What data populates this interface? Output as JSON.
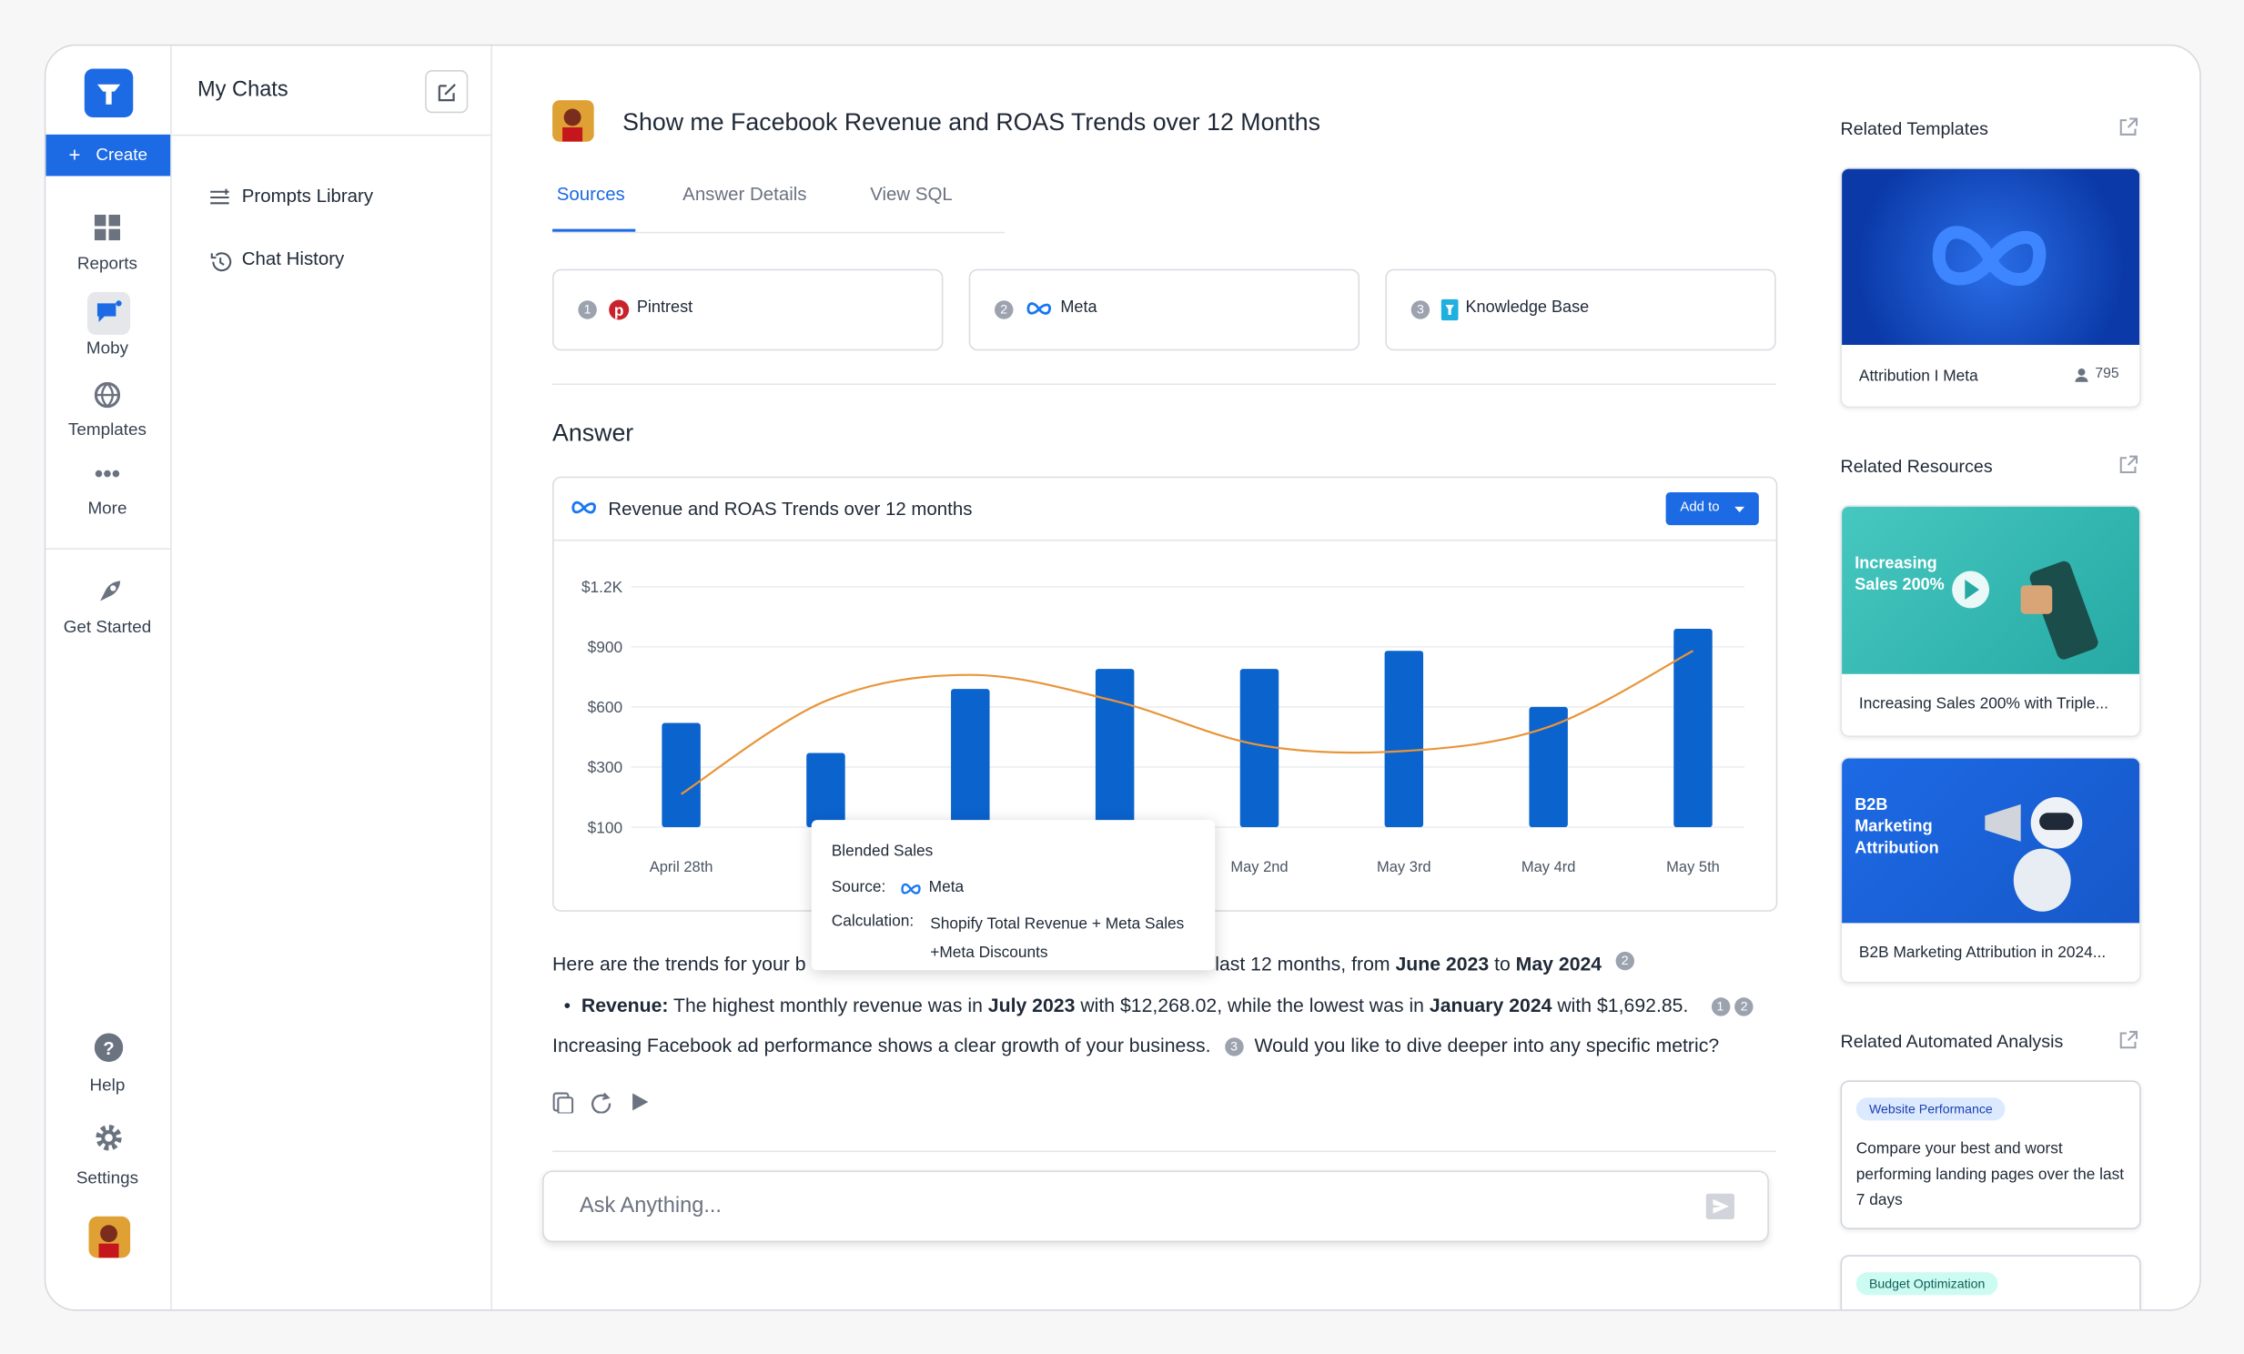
{
  "sidebar": {
    "create": "Create",
    "nav": [
      "Reports",
      "Moby",
      "Templates",
      "More",
      "Get Started",
      "Help",
      "Settings"
    ]
  },
  "chats": {
    "title": "My Chats",
    "items": [
      "Prompts Library",
      "Chat History"
    ]
  },
  "main": {
    "question": "Show me Facebook Revenue and ROAS Trends over 12 Months",
    "tabs": [
      "Sources",
      "Answer Details",
      "View SQL"
    ],
    "sources": [
      {
        "num": 1,
        "label": "Pintrest"
      },
      {
        "num": 2,
        "label": "Meta"
      },
      {
        "num": 3,
        "label": "Knowledge Base"
      }
    ],
    "answer_heading": "Answer",
    "add_button": "Add to",
    "tooltip": {
      "title": "Blended Sales",
      "source_label": "Source:",
      "source": "Meta",
      "calc_label": "Calculation:",
      "calc": [
        "Shopify Total Revenue + Meta Sales",
        "+Meta Discounts"
      ]
    },
    "answer": {
      "line1": [
        "Here are the trends for your b",
        "last 12 months, from ",
        "June 2023",
        " to ",
        "May 2024",
        2
      ],
      "line2": [
        "Revenue:",
        "The highest monthly revenue was in ",
        "July 2023",
        " with $12,268.02, while the lowest was in ",
        "January 2024",
        " with $1,692.85.",
        1,
        2
      ],
      "line3": [
        "Increasing Facebook ad performance shows a clear growth of your business.",
        3,
        "Would you like to dive deeper into any specific metric?"
      ]
    },
    "input_placeholder": "Ask Anything..."
  },
  "chart_data": {
    "type": "bar",
    "title": "Revenue and ROAS Trends over 12 months",
    "categories": [
      "April 28th",
      null,
      null,
      null,
      "May 2nd",
      "May 3rd",
      "May 4rd",
      "May 5th"
    ],
    "series": [
      {
        "type": "bar",
        "color": "#0b63ce",
        "values": [
          520,
          370,
          690,
          790,
          790,
          880,
          600,
          990
        ]
      },
      {
        "type": "line",
        "color": "#e8953a",
        "values": [
          210,
          630,
          760,
          630,
          410,
          380,
          500,
          880
        ]
      }
    ],
    "ylim": [
      100,
      1200
    ],
    "yticks": [
      {
        "value": 100,
        "label": "$100"
      },
      {
        "value": 300,
        "label": "$300"
      },
      {
        "value": 600,
        "label": "$600"
      },
      {
        "value": 900,
        "label": "$900"
      },
      {
        "value": 1200,
        "label": "$1.2K"
      }
    ],
    "grid": true
  },
  "right": {
    "templates_heading": "Related Templates",
    "template": {
      "title": "Attribution I Meta",
      "count": 795
    },
    "resources_heading": "Related Resources",
    "resources": [
      {
        "image_text": "Increasing Sales 200%",
        "title": "Increasing Sales 200% with Triple..."
      },
      {
        "image_text": "B2B Marketing Attribution",
        "title": "B2B Marketing Attribution in 2024..."
      }
    ],
    "analysis_heading": "Related Automated Analysis",
    "analysis": [
      {
        "tag": "Website Performance",
        "text": "Compare your best and worst performing landing pages over the last 7 days"
      },
      {
        "tag": "Budget Optimization"
      }
    ]
  }
}
